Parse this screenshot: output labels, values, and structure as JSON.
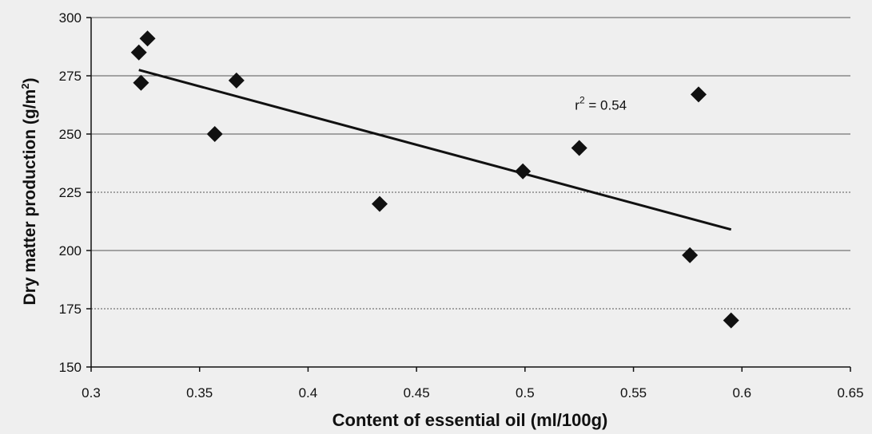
{
  "chart_data": {
    "type": "scatter",
    "title": "",
    "xlabel": "Content of essential oil (ml/100g)",
    "ylabel_main": "Dry matter production (g/m",
    "ylabel_sup": "2",
    "ylabel_end": ")",
    "xlim": [
      0.3,
      0.65
    ],
    "ylim": [
      150,
      300
    ],
    "x_ticks": [
      0.3,
      0.35,
      0.4,
      0.45,
      0.5,
      0.55,
      0.6,
      0.65
    ],
    "x_tick_labels": [
      "0.3",
      "0.35",
      "0.4",
      "0.45",
      "0.5",
      "0.55",
      "0.6",
      "0.65"
    ],
    "y_ticks": [
      150,
      175,
      200,
      225,
      250,
      275,
      300
    ],
    "y_tick_labels": [
      "150",
      "175",
      "200",
      "225",
      "250",
      "275",
      "300"
    ],
    "grid": "horizontal",
    "points": [
      {
        "x": 0.322,
        "y": 285
      },
      {
        "x": 0.326,
        "y": 291
      },
      {
        "x": 0.323,
        "y": 272
      },
      {
        "x": 0.357,
        "y": 250
      },
      {
        "x": 0.367,
        "y": 273
      },
      {
        "x": 0.433,
        "y": 220
      },
      {
        "x": 0.499,
        "y": 234
      },
      {
        "x": 0.525,
        "y": 244
      },
      {
        "x": 0.576,
        "y": 198
      },
      {
        "x": 0.58,
        "y": 267
      },
      {
        "x": 0.595,
        "y": 170
      }
    ],
    "trendline": {
      "x": [
        0.322,
        0.595
      ],
      "y": [
        277.5,
        209
      ]
    },
    "annotation": {
      "r_prefix": "r",
      "r_sup": "2",
      "r_value": " = 0.54",
      "x": 0.523,
      "y": 260.5
    },
    "colors": {
      "marker": "#111111",
      "line": "#111111",
      "grid": "#555555",
      "background": "#efefef"
    }
  }
}
